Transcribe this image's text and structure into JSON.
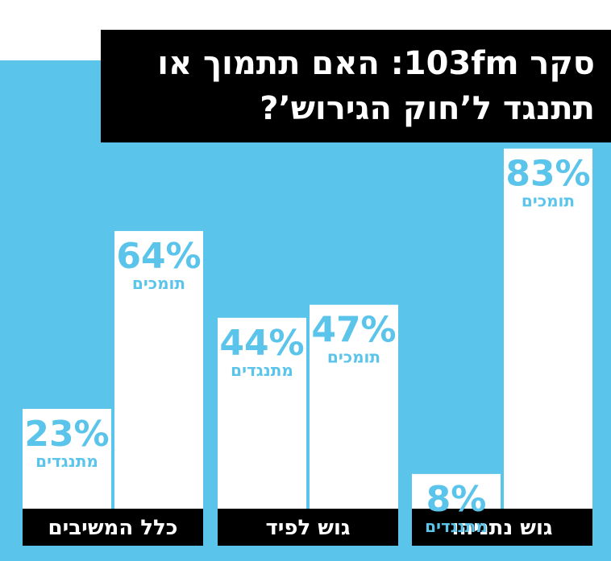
{
  "chart_data": {
    "type": "bar",
    "title": "סקר 103fm: האם תתמוך או תתנגד ל’חוק הגירוש’?",
    "categories": [
      "כלל המשיבים",
      "גוש לפיד",
      "גוש נתניהו"
    ],
    "background": "#5bc4ea",
    "series": [
      {
        "name": "מתנגדים",
        "color": "#ffffff",
        "values": [
          23,
          44,
          8
        ],
        "value_labels": [
          "23%",
          "44%",
          "8%"
        ]
      },
      {
        "name": "תומכים",
        "color": "#ffffff",
        "values": [
          64,
          47,
          83
        ],
        "value_labels": [
          "64%",
          "47%",
          "83%"
        ]
      }
    ]
  }
}
